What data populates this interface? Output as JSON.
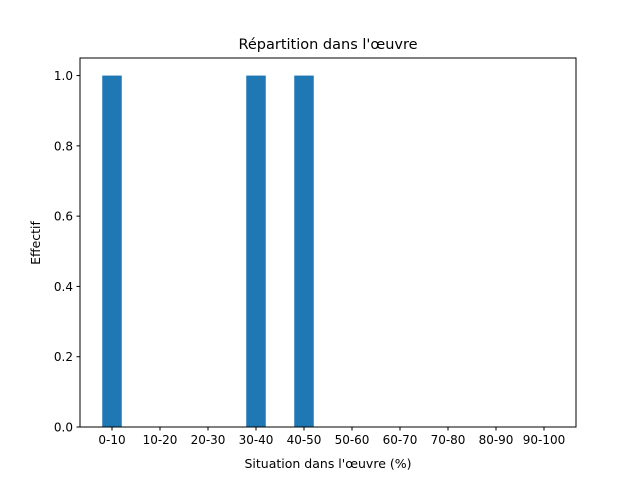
{
  "chart_data": {
    "type": "bar",
    "title": "Répartition dans l'œuvre",
    "xlabel": "Situation dans l'œuvre (%)",
    "ylabel": "Effectif",
    "categories": [
      "0-10",
      "10-20",
      "20-30",
      "30-40",
      "40-50",
      "50-60",
      "60-70",
      "70-80",
      "80-90",
      "90-100"
    ],
    "values": [
      1,
      0,
      0,
      1,
      1,
      0,
      0,
      0,
      0,
      0
    ],
    "ylim": [
      0,
      1.05
    ],
    "yticks": [
      0.0,
      0.2,
      0.4,
      0.6,
      0.8,
      1.0
    ],
    "ytick_labels": [
      "0.0",
      "0.2",
      "0.4",
      "0.6",
      "0.8",
      "1.0"
    ],
    "grid": false,
    "bar_color": "#1f77b4"
  }
}
